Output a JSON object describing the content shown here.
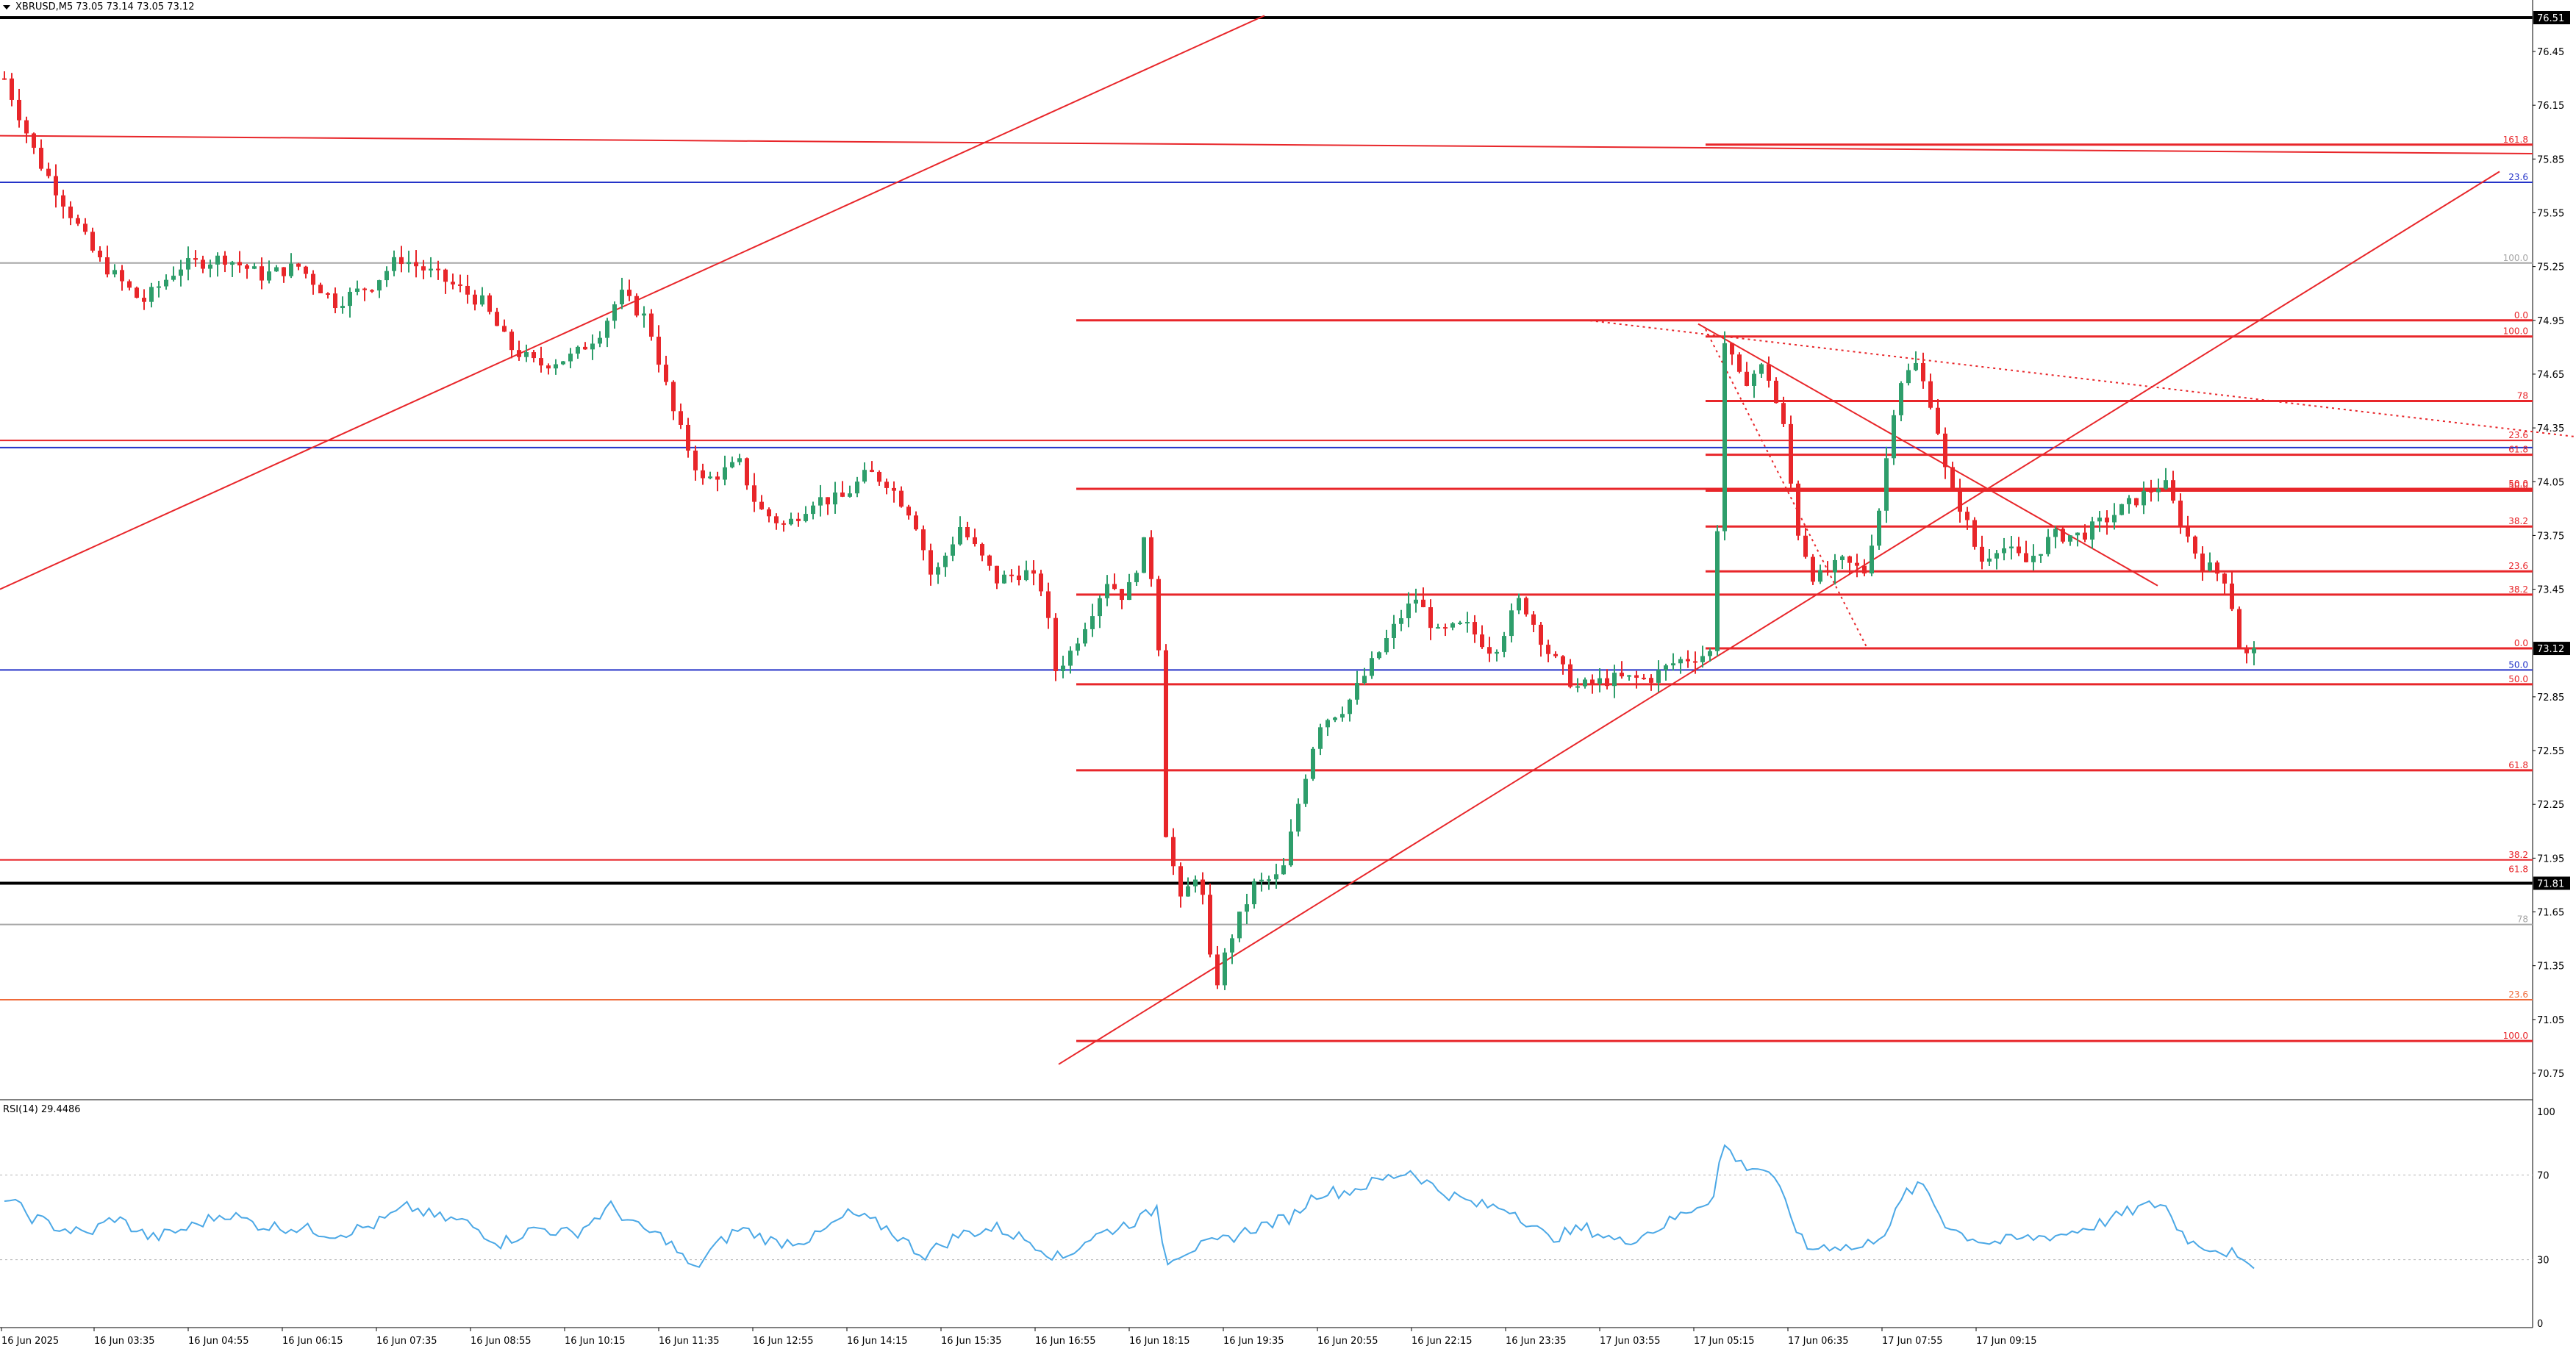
{
  "header": {
    "symbol": "XBRUSD,M5",
    "ohlc": "73.05 73.14 73.05 73.12"
  },
  "rsi": {
    "label": "RSI(14)",
    "value": "29.4486",
    "levels": [
      "100",
      "70",
      "30",
      "0"
    ]
  },
  "price_axis": {
    "ticks": [
      "76.45",
      "76.15",
      "75.85",
      "75.55",
      "75.25",
      "74.95",
      "74.65",
      "74.35",
      "74.05",
      "73.75",
      "73.45",
      "72.85",
      "72.55",
      "72.25",
      "71.95",
      "71.65",
      "71.35",
      "71.05",
      "70.75"
    ],
    "current_price": "73.12",
    "top_label": "76.51",
    "bottom_label": "71.81"
  },
  "time_axis": {
    "labels": [
      "16 Jun 2025",
      "16 Jun 03:35",
      "16 Jun 04:55",
      "16 Jun 06:15",
      "16 Jun 07:35",
      "16 Jun 08:55",
      "16 Jun 10:15",
      "16 Jun 11:35",
      "16 Jun 12:55",
      "16 Jun 14:15",
      "16 Jun 15:35",
      "16 Jun 16:55",
      "16 Jun 18:15",
      "16 Jun 19:35",
      "16 Jun 20:55",
      "16 Jun 22:15",
      "16 Jun 23:35",
      "17 Jun 03:55",
      "17 Jun 05:15",
      "17 Jun 06:35",
      "17 Jun 07:55",
      "17 Jun 09:15"
    ]
  },
  "fib_labels": [
    "161.8",
    "23.6",
    "100.0",
    "0.0",
    "100.0",
    "78",
    "23.6",
    "61.8",
    "50.0",
    "38.2",
    "23.6",
    "38.2",
    "0.0",
    "50.0",
    "50.0",
    "61.8",
    "38.2",
    "61.8",
    "78",
    "23.6",
    "100.0"
  ],
  "colors": {
    "bull": "#2e9e6b",
    "bear": "#e8262a",
    "fib_red": "#e8262a",
    "blue_line": "#2433c8",
    "orange_line": "#ef6a3a",
    "gray_line": "#a6a6a6",
    "rsi_line": "#4ba8e6"
  },
  "chart_data": {
    "type": "candlestick",
    "symbol": "XBRUSD",
    "timeframe": "M5",
    "ylim": [
      70.6,
      76.55
    ],
    "current_price": 73.12,
    "waypoints": [
      [
        0,
        76.3
      ],
      [
        18,
        75.85
      ],
      [
        30,
        75.65
      ],
      [
        50,
        75.3
      ],
      [
        75,
        75.05
      ],
      [
        95,
        75.25
      ],
      [
        120,
        75.3
      ],
      [
        140,
        75.2
      ],
      [
        160,
        75.25
      ],
      [
        180,
        75.05
      ],
      [
        200,
        75.15
      ],
      [
        215,
        75.3
      ],
      [
        235,
        75.2
      ],
      [
        260,
        75.05
      ],
      [
        275,
        74.8
      ],
      [
        290,
        74.7
      ],
      [
        310,
        74.75
      ],
      [
        325,
        74.9
      ],
      [
        335,
        75.1
      ],
      [
        350,
        74.95
      ],
      [
        365,
        74.4
      ],
      [
        380,
        74.05
      ],
      [
        400,
        74.15
      ],
      [
        410,
        73.9
      ],
      [
        425,
        73.8
      ],
      [
        440,
        73.95
      ],
      [
        455,
        73.95
      ],
      [
        470,
        74.1
      ],
      [
        480,
        74.05
      ],
      [
        495,
        73.85
      ],
      [
        505,
        73.5
      ],
      [
        520,
        73.8
      ],
      [
        530,
        73.65
      ],
      [
        540,
        73.5
      ],
      [
        555,
        73.55
      ],
      [
        565,
        73.45
      ],
      [
        572,
        73.0
      ],
      [
        580,
        73.1
      ],
      [
        590,
        73.3
      ],
      [
        600,
        73.5
      ],
      [
        610,
        73.4
      ],
      [
        620,
        73.7
      ],
      [
        627,
        73.4
      ],
      [
        632,
        72.1
      ],
      [
        640,
        71.7
      ],
      [
        650,
        71.9
      ],
      [
        658,
        71.2
      ],
      [
        667,
        71.5
      ],
      [
        680,
        71.8
      ],
      [
        695,
        71.85
      ],
      [
        705,
        72.3
      ],
      [
        715,
        72.7
      ],
      [
        730,
        72.8
      ],
      [
        745,
        73.05
      ],
      [
        760,
        73.3
      ],
      [
        768,
        73.4
      ],
      [
        780,
        73.2
      ],
      [
        795,
        73.25
      ],
      [
        810,
        73.1
      ],
      [
        825,
        73.4
      ],
      [
        840,
        73.1
      ],
      [
        855,
        72.9
      ],
      [
        875,
        72.95
      ],
      [
        895,
        72.95
      ],
      [
        910,
        73.05
      ],
      [
        930,
        73.1
      ],
      [
        935,
        74.85
      ],
      [
        945,
        74.6
      ],
      [
        958,
        74.7
      ],
      [
        968,
        74.35
      ],
      [
        975,
        73.8
      ],
      [
        985,
        73.5
      ],
      [
        1000,
        73.6
      ],
      [
        1012,
        73.55
      ],
      [
        1020,
        73.9
      ],
      [
        1030,
        74.6
      ],
      [
        1040,
        74.7
      ],
      [
        1050,
        74.45
      ],
      [
        1058,
        74.0
      ],
      [
        1065,
        73.9
      ],
      [
        1075,
        73.6
      ],
      [
        1085,
        73.7
      ],
      [
        1100,
        73.6
      ],
      [
        1115,
        73.75
      ],
      [
        1130,
        73.75
      ],
      [
        1145,
        73.85
      ],
      [
        1160,
        73.95
      ],
      [
        1175,
        74.05
      ],
      [
        1185,
        73.8
      ],
      [
        1195,
        73.6
      ],
      [
        1210,
        73.5
      ],
      [
        1215,
        73.15
      ],
      [
        1222,
        73.05
      ],
      [
        1225,
        73.12
      ]
    ],
    "rsi_waypoints": [
      [
        0,
        60
      ],
      [
        15,
        50
      ],
      [
        30,
        45
      ],
      [
        45,
        42
      ],
      [
        60,
        50
      ],
      [
        80,
        40
      ],
      [
        100,
        45
      ],
      [
        120,
        52
      ],
      [
        140,
        46
      ],
      [
        160,
        45
      ],
      [
        180,
        42
      ],
      [
        200,
        46
      ],
      [
        220,
        55
      ],
      [
        235,
        50
      ],
      [
        250,
        48
      ],
      [
        270,
        38
      ],
      [
        290,
        45
      ],
      [
        310,
        42
      ],
      [
        330,
        55
      ],
      [
        345,
        45
      ],
      [
        360,
        40
      ],
      [
        375,
        25
      ],
      [
        385,
        35
      ],
      [
        400,
        45
      ],
      [
        420,
        38
      ],
      [
        440,
        40
      ],
      [
        460,
        52
      ],
      [
        480,
        45
      ],
      [
        500,
        32
      ],
      [
        520,
        42
      ],
      [
        540,
        45
      ],
      [
        560,
        38
      ],
      [
        575,
        30
      ],
      [
        590,
        40
      ],
      [
        605,
        45
      ],
      [
        620,
        50
      ],
      [
        627,
        55
      ],
      [
        632,
        30
      ],
      [
        645,
        35
      ],
      [
        660,
        38
      ],
      [
        680,
        45
      ],
      [
        700,
        50
      ],
      [
        715,
        62
      ],
      [
        730,
        62
      ],
      [
        750,
        68
      ],
      [
        765,
        72
      ],
      [
        780,
        63
      ],
      [
        800,
        56
      ],
      [
        820,
        54
      ],
      [
        840,
        40
      ],
      [
        860,
        45
      ],
      [
        880,
        38
      ],
      [
        900,
        45
      ],
      [
        920,
        55
      ],
      [
        930,
        60
      ],
      [
        935,
        85
      ],
      [
        945,
        75
      ],
      [
        960,
        72
      ],
      [
        970,
        55
      ],
      [
        980,
        35
      ],
      [
        995,
        37
      ],
      [
        1010,
        35
      ],
      [
        1025,
        45
      ],
      [
        1035,
        62
      ],
      [
        1045,
        65
      ],
      [
        1055,
        48
      ],
      [
        1065,
        42
      ],
      [
        1080,
        38
      ],
      [
        1100,
        40
      ],
      [
        1120,
        42
      ],
      [
        1140,
        47
      ],
      [
        1160,
        54
      ],
      [
        1175,
        57
      ],
      [
        1180,
        48
      ],
      [
        1190,
        38
      ],
      [
        1200,
        36
      ],
      [
        1212,
        33
      ],
      [
        1218,
        27
      ],
      [
        1225,
        29
      ]
    ]
  }
}
